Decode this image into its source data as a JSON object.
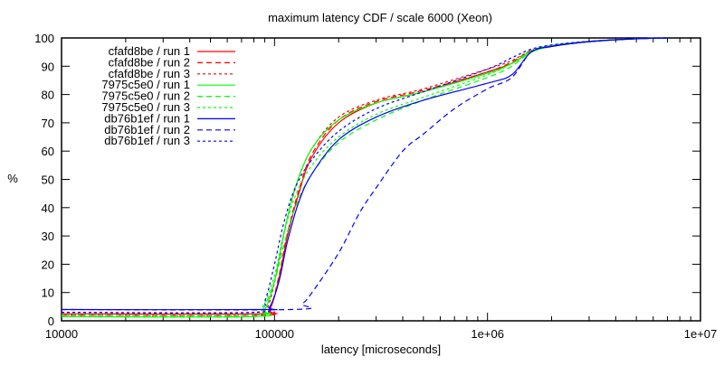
{
  "chart_data": {
    "type": "line",
    "title": "maximum latency CDF / scale 6000 (Xeon)",
    "xlabel": "latency [microseconds]",
    "ylabel": "%",
    "xscale": "log",
    "xlim": [
      10000,
      10000000
    ],
    "ylim": [
      0,
      100
    ],
    "xticks": [
      {
        "value": 10000,
        "label": "10000"
      },
      {
        "value": 100000,
        "label": "100000"
      },
      {
        "value": 1000000,
        "label": "1e+06"
      },
      {
        "value": 10000000,
        "label": "1e+07"
      }
    ],
    "yticks": [
      0,
      10,
      20,
      30,
      40,
      50,
      60,
      70,
      80,
      90,
      100
    ],
    "grid": false,
    "legend_position": "top-left",
    "series": [
      {
        "name": "cfafd8be / run 1",
        "color": "#ff0000",
        "dash": "solid",
        "x": [
          10000,
          85000,
          95000,
          105000,
          115000,
          130000,
          150000,
          200000,
          300000,
          500000,
          1000000,
          1300000,
          1600000,
          2000000,
          3000000,
          5000000,
          7000000
        ],
        "y": [
          2.5,
          2.5,
          4,
          15,
          30,
          45,
          58,
          70,
          77,
          81,
          88,
          91,
          95,
          97,
          98.7,
          99.7,
          100
        ]
      },
      {
        "name": "cfafd8be / run 2",
        "color": "#ff0000",
        "dash": "dashed",
        "x": [
          10000,
          85000,
          95000,
          105000,
          115000,
          130000,
          150000,
          200000,
          300000,
          500000,
          1000000,
          1300000,
          1600000,
          2000000,
          3000000,
          5000000,
          7000000
        ],
        "y": [
          2,
          2,
          4,
          16,
          31,
          46,
          59,
          71,
          77.5,
          81.5,
          88,
          91.5,
          95.5,
          97,
          98.8,
          99.7,
          100
        ]
      },
      {
        "name": "cfafd8be / run 3",
        "color": "#ff0000",
        "dash": "dotted",
        "x": [
          10000,
          83000,
          93000,
          103000,
          113000,
          128000,
          150000,
          200000,
          300000,
          500000,
          1000000,
          1300000,
          1600000,
          2000000,
          3000000,
          5000000,
          7000000
        ],
        "y": [
          3,
          3,
          5,
          18,
          34,
          49,
          61,
          72,
          78,
          82,
          89,
          92,
          95.5,
          97.2,
          98.8,
          99.7,
          100
        ]
      },
      {
        "name": "7975c5e0 / run 1",
        "color": "#00ff00",
        "dash": "solid",
        "x": [
          10000,
          80000,
          90000,
          100000,
          110000,
          125000,
          150000,
          200000,
          300000,
          500000,
          1000000,
          1300000,
          1600000,
          2000000,
          3000000,
          5000000,
          7000000
        ],
        "y": [
          1.5,
          1.5,
          4,
          14,
          30,
          47,
          61,
          71,
          77,
          81,
          87.5,
          91,
          95,
          97,
          98.7,
          99.7,
          100
        ]
      },
      {
        "name": "7975c5e0 / run 2",
        "color": "#00ff00",
        "dash": "dashed",
        "x": [
          10000,
          78000,
          88000,
          100000,
          110000,
          125000,
          150000,
          200000,
          300000,
          500000,
          1000000,
          1300000,
          1600000,
          2000000,
          3000000,
          5000000,
          7000000
        ],
        "y": [
          1.5,
          1.5,
          4,
          14,
          26,
          40,
          52,
          63,
          71,
          78,
          86,
          90,
          95,
          97,
          98.7,
          99.7,
          100
        ]
      },
      {
        "name": "7975c5e0 / run 3",
        "color": "#00ff00",
        "dash": "dotted",
        "x": [
          10000,
          78000,
          88000,
          100000,
          110000,
          125000,
          150000,
          200000,
          300000,
          500000,
          1000000,
          1300000,
          1600000,
          2000000,
          3000000,
          5000000,
          7000000
        ],
        "y": [
          2,
          2,
          5,
          16,
          30,
          44,
          55,
          65,
          73,
          79,
          87,
          91,
          95.5,
          97.5,
          98.8,
          99.7,
          100
        ]
      },
      {
        "name": "db76b1ef / run 1",
        "color": "#0000ff",
        "dash": "solid",
        "x": [
          10000,
          85000,
          95000,
          105000,
          115000,
          130000,
          150000,
          200000,
          300000,
          500000,
          1000000,
          1300000,
          1600000,
          2000000,
          3000000,
          5000000,
          7000000
        ],
        "y": [
          4,
          4,
          5,
          14,
          28,
          42,
          52,
          64,
          72,
          78,
          84,
          87,
          95,
          97,
          98.7,
          99.7,
          100
        ]
      },
      {
        "name": "db76b1ef / run 2",
        "color": "#0000ff",
        "dash": "dashed",
        "x": [
          10000,
          120000,
          135000,
          150000,
          200000,
          250000,
          300000,
          400000,
          500000,
          700000,
          1000000,
          1300000,
          1600000,
          2000000,
          3000000,
          5000000,
          7000000
        ],
        "y": [
          4,
          4,
          6,
          10,
          24,
          38,
          47,
          60,
          66,
          75,
          82,
          86,
          95,
          97,
          98.7,
          99.7,
          100
        ]
      },
      {
        "name": "db76b1ef / run 3",
        "color": "#0000ff",
        "dash": "dotted",
        "x": [
          10000,
          80000,
          90000,
          100000,
          110000,
          125000,
          150000,
          200000,
          300000,
          500000,
          1000000,
          1300000,
          1600000,
          2000000,
          3000000,
          5000000,
          7000000
        ],
        "y": [
          3,
          3,
          7,
          20,
          34,
          47,
          57,
          67,
          75,
          81,
          89,
          93,
          96,
          97.5,
          98.8,
          99.7,
          100
        ]
      }
    ]
  }
}
